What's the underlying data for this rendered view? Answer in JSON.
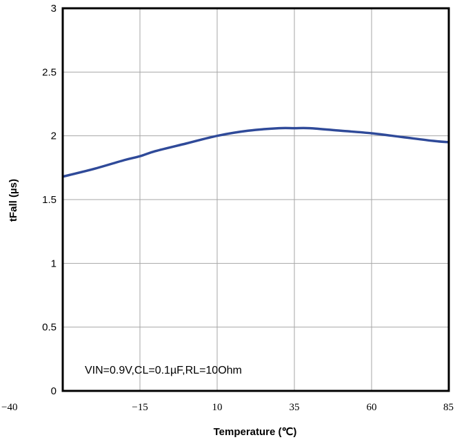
{
  "chart_data": {
    "type": "line",
    "xlabel": "Temperature (℃)",
    "ylabel": "tFall (µs)",
    "xlim": [
      -40,
      85
    ],
    "ylim": [
      0,
      3
    ],
    "x_ticks": [
      -40,
      -15,
      10,
      35,
      60,
      85
    ],
    "x_tick_labels": [
      "−40",
      "−15",
      "10",
      "35",
      "60",
      "85"
    ],
    "y_ticks": [
      0,
      0.5,
      1,
      1.5,
      2,
      2.5,
      3
    ],
    "y_tick_labels": [
      "0",
      "0.5",
      "1",
      "1.5",
      "2",
      "2.5",
      "3"
    ],
    "grid": true,
    "annotation": "VIN=0.9V,CL=0.1µF,RL=10Ohm",
    "line_color": "#2f4a99",
    "series": [
      {
        "x": [
          -40,
          -30,
          -20,
          -15,
          -10,
          0,
          10,
          20,
          30,
          35,
          40,
          50,
          60,
          70,
          80,
          85
        ],
        "values": [
          1.68,
          1.74,
          1.81,
          1.84,
          1.88,
          1.94,
          2.0,
          2.04,
          2.06,
          2.06,
          2.06,
          2.04,
          2.02,
          1.99,
          1.96,
          1.95
        ]
      }
    ]
  }
}
